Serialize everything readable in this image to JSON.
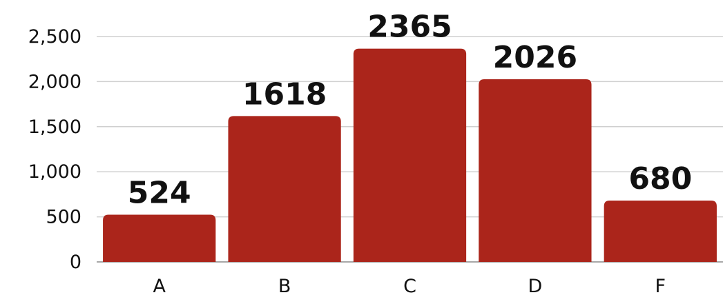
{
  "chart_data": {
    "type": "bar",
    "title": "",
    "xlabel": "",
    "ylabel": "",
    "categories": [
      "A",
      "B",
      "C",
      "D",
      "F"
    ],
    "values": [
      524,
      1618,
      2365,
      2026,
      680
    ],
    "data_labels": [
      "524",
      "1618",
      "2365",
      "2026",
      "680"
    ],
    "ylim": [
      0,
      2500
    ],
    "yticks": [
      0,
      500,
      1000,
      1500,
      2000,
      2500
    ],
    "ytick_labels": [
      "0",
      "500",
      "1,000",
      "1,500",
      "2,000",
      "2,500"
    ],
    "grid": true,
    "legend": "none",
    "bar_color": "#ab251b"
  }
}
